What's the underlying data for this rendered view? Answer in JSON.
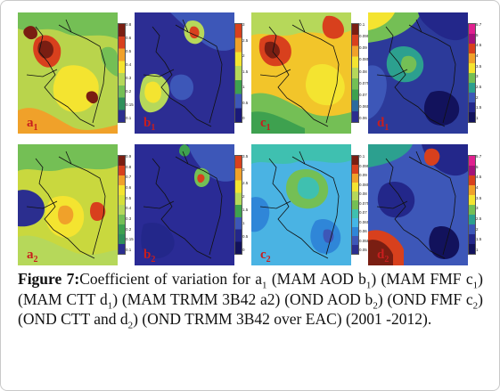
{
  "figure": {
    "panels": [
      {
        "id": "a1",
        "letter": "a",
        "index": "1",
        "ticks": [
          "0.8",
          "0.6",
          "0.5",
          "0.4",
          "0.3",
          "0.2",
          "0.15",
          "0.1"
        ],
        "colors": [
          "#7a1e12",
          "#d8401d",
          "#f0a12a",
          "#f4e430",
          "#b6d85a",
          "#74bf55",
          "#2f8f5a",
          "#2b2e8f"
        ],
        "base": "#b9d44c"
      },
      {
        "id": "b1",
        "letter": "b",
        "index": "1",
        "ticks": [
          "3",
          "2.5",
          "2",
          "1.5",
          "1",
          "0.5",
          "0"
        ],
        "colors": [
          "#d8401d",
          "#f0a12a",
          "#f4e430",
          "#b6d85a",
          "#3ea14f",
          "#3d57b8",
          "#1a1a7a"
        ],
        "base": "#2c2d93"
      },
      {
        "id": "c1",
        "letter": "c",
        "index": "1",
        "ticks": [
          "0.1",
          "0.095",
          "0.09",
          "0.085",
          "0.08",
          "0.075",
          "0.07",
          "0.065",
          "0.06"
        ],
        "colors": [
          "#7a1e12",
          "#d8401d",
          "#f0a12a",
          "#f4e430",
          "#b6d85a",
          "#74bf55",
          "#3ea14f",
          "#2b6b9e",
          "#2b2e8f"
        ],
        "base": "#f2c52a"
      },
      {
        "id": "d1",
        "letter": "d",
        "index": "1",
        "ticks": [
          "5.7",
          "5",
          "4.5",
          "4",
          "3.5",
          "3",
          "2.5",
          "2",
          "1.5",
          "1"
        ],
        "colors": [
          "#e0208f",
          "#a3127a",
          "#d8401d",
          "#f0a12a",
          "#f4e430",
          "#74bf55",
          "#2ca08f",
          "#3d57b8",
          "#23278a",
          "#12125c"
        ],
        "base": "#2c3a9a"
      },
      {
        "id": "a2",
        "letter": "a",
        "index": "2",
        "ticks": [
          "0.9",
          "0.8",
          "0.7",
          "0.6",
          "0.5",
          "0.4",
          "0.3",
          "0.2",
          "0.15",
          "0.1"
        ],
        "colors": [
          "#7a1e12",
          "#d8401d",
          "#f0a12a",
          "#f4e430",
          "#d6e03a",
          "#b6d85a",
          "#74bf55",
          "#3ea14f",
          "#2f8f5a",
          "#2b2e8f"
        ],
        "base": "#c9d83e"
      },
      {
        "id": "b2",
        "letter": "b",
        "index": "2",
        "ticks": [
          "3.5",
          "3",
          "2.5",
          "2",
          "1.5",
          "1",
          "0.5",
          "0"
        ],
        "colors": [
          "#d8401d",
          "#f0a12a",
          "#f4e430",
          "#b6d85a",
          "#3ea14f",
          "#3d57b8",
          "#23278a",
          "#12125c"
        ],
        "base": "#2a2b95"
      },
      {
        "id": "c2",
        "letter": "c",
        "index": "2",
        "ticks": [
          "0.1",
          "0.095",
          "0.09",
          "0.085",
          "0.08",
          "0.075",
          "0.07",
          "0.065",
          "0.06",
          "0.055",
          "0.05"
        ],
        "colors": [
          "#7a1e12",
          "#d8401d",
          "#f0a12a",
          "#f4e430",
          "#b6d85a",
          "#74bf55",
          "#3fc0b0",
          "#44b6e6",
          "#2f86d8",
          "#3d57b8",
          "#2b2e8f"
        ],
        "base": "#4ab3e3"
      },
      {
        "id": "d2",
        "letter": "d",
        "index": "2",
        "ticks": [
          "5.7",
          "5",
          "4.5",
          "4",
          "3.5",
          "3",
          "2.5",
          "2",
          "1.5",
          "1"
        ],
        "colors": [
          "#e0208f",
          "#a3127a",
          "#d8401d",
          "#f0a12a",
          "#f4e430",
          "#74bf55",
          "#2ca08f",
          "#3d57b8",
          "#23278a",
          "#12125c"
        ],
        "base": "#3d57b8"
      }
    ]
  },
  "caption": {
    "label": "Figure 7:",
    "t1": "Coefficient of variation for a",
    "s1": "1",
    "t2": " (MAM AOD b",
    "s2": "1",
    "t3": ") (MAM FMF c",
    "s3": "1",
    "t4": ") (MAM CTT d",
    "s4": "1",
    "t5": ") (MAM TRMM 3B42 a2) (OND AOD b",
    "s5": "2",
    "t6": ") (OND FMF c",
    "s6": "2",
    "t7": ") (OND CTT and d",
    "s7": "2",
    "t8": ") (OND TRMM 3B42 over EAC) (2001 -2012)."
  }
}
